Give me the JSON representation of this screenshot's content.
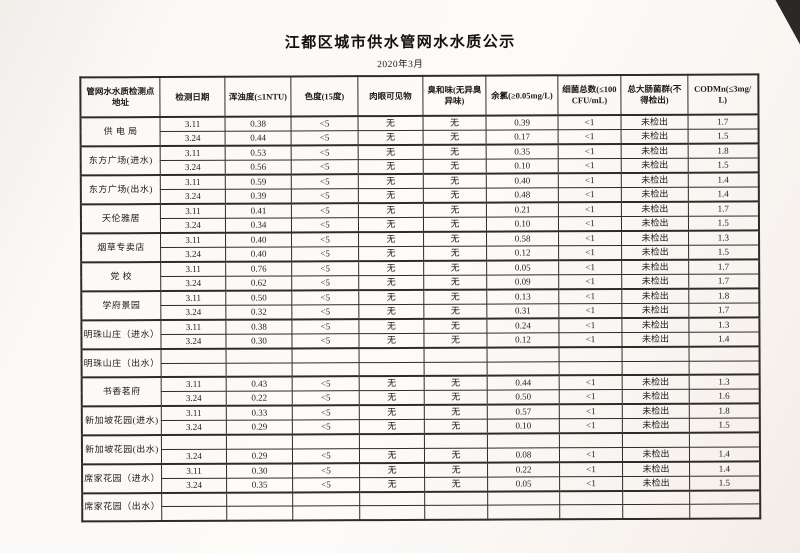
{
  "title": "江都区城市供水管网水水质公示",
  "subtitle": "2020年3月",
  "colors": {
    "paper": "#faf9f6",
    "ink": "#1e1c1a",
    "table_border": "#2e2c29"
  },
  "table": {
    "headers": [
      "管网水水质检测点地址",
      "检测日期",
      "浑浊度(≤1NTU)",
      "色度(15度)",
      "肉眼可见物",
      "臭和味(无异臭异味)",
      "余氯(≥0.05mg/L)",
      "细菌总数(≤100CFU/mL)",
      "总大肠菌群(不得检出)",
      "CODMn(≤3mg/L)"
    ],
    "groups": [
      {
        "location": "供 电 局",
        "rows": [
          [
            "3.11",
            "0.38",
            "<5",
            "无",
            "无",
            "0.39",
            "<1",
            "未检出",
            "1.7"
          ],
          [
            "3.24",
            "0.44",
            "<5",
            "无",
            "无",
            "0.17",
            "<1",
            "未检出",
            "1.5"
          ]
        ]
      },
      {
        "location": "东方广场(进水)",
        "rows": [
          [
            "3.11",
            "0.53",
            "<5",
            "无",
            "无",
            "0.35",
            "<1",
            "未检出",
            "1.8"
          ],
          [
            "3.24",
            "0.56",
            "<5",
            "无",
            "无",
            "0.10",
            "<1",
            "未检出",
            "1.5"
          ]
        ]
      },
      {
        "location": "东方广场(出水)",
        "rows": [
          [
            "3.11",
            "0.59",
            "<5",
            "无",
            "无",
            "0.40",
            "<1",
            "未检出",
            "1.4"
          ],
          [
            "3.24",
            "0.39",
            "<5",
            "无",
            "无",
            "0.48",
            "<1",
            "未检出",
            "1.4"
          ]
        ]
      },
      {
        "location": "天伦雅居",
        "rows": [
          [
            "3.11",
            "0.41",
            "<5",
            "无",
            "无",
            "0.21",
            "<1",
            "未检出",
            "1.7"
          ],
          [
            "3.24",
            "0.34",
            "<5",
            "无",
            "无",
            "0.10",
            "<1",
            "未检出",
            "1.5"
          ]
        ]
      },
      {
        "location": "烟草专卖店",
        "rows": [
          [
            "3.11",
            "0.40",
            "<5",
            "无",
            "无",
            "0.58",
            "<1",
            "未检出",
            "1.3"
          ],
          [
            "3.24",
            "0.40",
            "<5",
            "无",
            "无",
            "0.12",
            "<1",
            "未检出",
            "1.5"
          ]
        ]
      },
      {
        "location": "党  校",
        "rows": [
          [
            "3.11",
            "0.76",
            "<5",
            "无",
            "无",
            "0.05",
            "<1",
            "未检出",
            "1.7"
          ],
          [
            "3.24",
            "0.62",
            "<5",
            "无",
            "无",
            "0.09",
            "<1",
            "未检出",
            "1.7"
          ]
        ]
      },
      {
        "location": "学府景园",
        "rows": [
          [
            "3.11",
            "0.50",
            "<5",
            "无",
            "无",
            "0.13",
            "<1",
            "未检出",
            "1.8"
          ],
          [
            "3.24",
            "0.32",
            "<5",
            "无",
            "无",
            "0.31",
            "<1",
            "未检出",
            "1.7"
          ]
        ]
      },
      {
        "location": "明珠山庄（进水）",
        "rows": [
          [
            "3.11",
            "0.38",
            "<5",
            "无",
            "无",
            "0.24",
            "<1",
            "未检出",
            "1.3"
          ],
          [
            "3.24",
            "0.30",
            "<5",
            "无",
            "无",
            "0.12",
            "<1",
            "未检出",
            "1.4"
          ]
        ]
      },
      {
        "location": "明珠山庄（出水）",
        "rows": [
          [
            "",
            "",
            "",
            "",
            "",
            "",
            "",
            "",
            ""
          ],
          [
            "",
            "",
            "",
            "",
            "",
            "",
            "",
            "",
            ""
          ]
        ]
      },
      {
        "location": "书香茗府",
        "rows": [
          [
            "3.11",
            "0.43",
            "<5",
            "无",
            "无",
            "0.44",
            "<1",
            "未检出",
            "1.3"
          ],
          [
            "3.24",
            "0.22",
            "<5",
            "无",
            "无",
            "0.50",
            "<1",
            "未检出",
            "1.6"
          ]
        ]
      },
      {
        "location": "新加坡花园(进水)",
        "rows": [
          [
            "3.11",
            "0.33",
            "<5",
            "无",
            "无",
            "0.57",
            "<1",
            "未检出",
            "1.8"
          ],
          [
            "3.24",
            "0.29",
            "<5",
            "无",
            "无",
            "0.10",
            "<1",
            "未检出",
            "1.5"
          ]
        ]
      },
      {
        "location": "新加坡花园(出水)",
        "rows": [
          [
            "",
            "",
            "",
            "",
            "",
            "",
            "",
            "",
            ""
          ],
          [
            "3.24",
            "0.29",
            "<5",
            "无",
            "无",
            "0.08",
            "<1",
            "未检出",
            "1.4"
          ]
        ]
      },
      {
        "location": "席家花园（进水）",
        "rows": [
          [
            "3.11",
            "0.30",
            "<5",
            "无",
            "无",
            "0.22",
            "<1",
            "未检出",
            "1.4"
          ],
          [
            "3.24",
            "0.35",
            "<5",
            "无",
            "无",
            "0.05",
            "<1",
            "未检出",
            "1.5"
          ]
        ]
      },
      {
        "location": "席家花园（出水）",
        "rows": [
          [
            "",
            "",
            "",
            "",
            "",
            "",
            "",
            "",
            ""
          ],
          [
            "",
            "",
            "",
            "",
            "",
            "",
            "",
            "",
            ""
          ]
        ]
      }
    ]
  }
}
